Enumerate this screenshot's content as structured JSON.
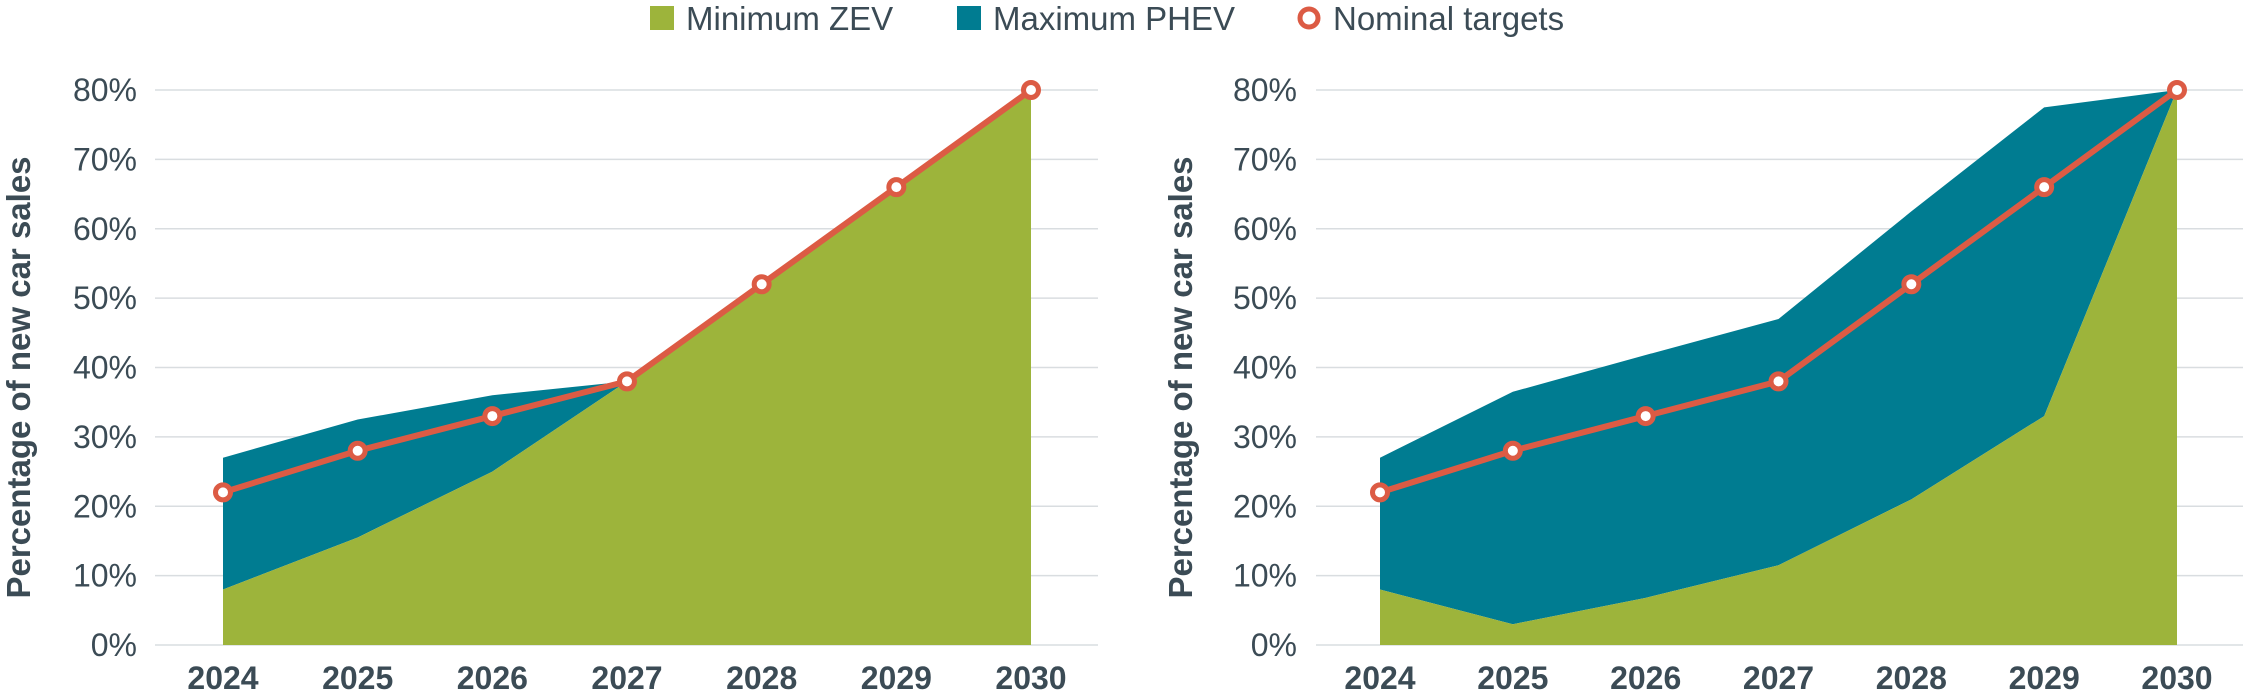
{
  "colors": {
    "zev": "#9db43b",
    "phev": "#007c91",
    "target_line": "#dc5b44",
    "text": "#3b4b55",
    "grid": "#d9dde0"
  },
  "legend": [
    {
      "label": "Minimum ZEV",
      "marker": "square",
      "color_key": "zev"
    },
    {
      "label": "Maximum PHEV",
      "marker": "square",
      "color_key": "phev"
    },
    {
      "label": "Nominal targets",
      "marker": "circle",
      "color_key": "target_line"
    }
  ],
  "chart_data": [
    {
      "type": "area",
      "title": "",
      "xlabel": "",
      "ylabel": "Percentage of new car sales",
      "x": [
        "2024",
        "2025",
        "2026",
        "2027",
        "2028",
        "2029",
        "2030"
      ],
      "ylim": [
        0,
        80
      ],
      "yticks": [
        "0%",
        "10%",
        "20%",
        "30%",
        "40%",
        "50%",
        "60%",
        "70%",
        "80%"
      ],
      "grid": true,
      "series": [
        {
          "name": "Minimum ZEV",
          "kind": "area",
          "values": [
            8,
            15.5,
            25,
            38,
            52,
            66,
            80
          ]
        },
        {
          "name": "Maximum PHEV",
          "kind": "area",
          "values": [
            19,
            17,
            11,
            0,
            0,
            0,
            0
          ]
        },
        {
          "name": "Nominal targets",
          "kind": "line",
          "values": [
            22,
            28,
            33,
            38,
            52,
            66,
            80
          ]
        }
      ]
    },
    {
      "type": "area",
      "title": "",
      "xlabel": "",
      "ylabel": "Percentage of new car sales",
      "x": [
        "2024",
        "2025",
        "2026",
        "2027",
        "2028",
        "2029",
        "2030"
      ],
      "ylim": [
        0,
        80
      ],
      "yticks": [
        "0%",
        "10%",
        "20%",
        "30%",
        "40%",
        "50%",
        "60%",
        "70%",
        "80%"
      ],
      "grid": true,
      "series": [
        {
          "name": "Minimum ZEV",
          "kind": "area",
          "values": [
            8,
            3,
            6.8,
            11.5,
            21,
            33,
            80
          ]
        },
        {
          "name": "Maximum PHEV",
          "kind": "area",
          "values": [
            19,
            33.5,
            35,
            35.5,
            41.5,
            44.5,
            0
          ]
        },
        {
          "name": "Nominal targets",
          "kind": "line",
          "values": [
            22,
            28,
            33,
            38,
            52,
            66,
            80
          ]
        }
      ]
    }
  ]
}
